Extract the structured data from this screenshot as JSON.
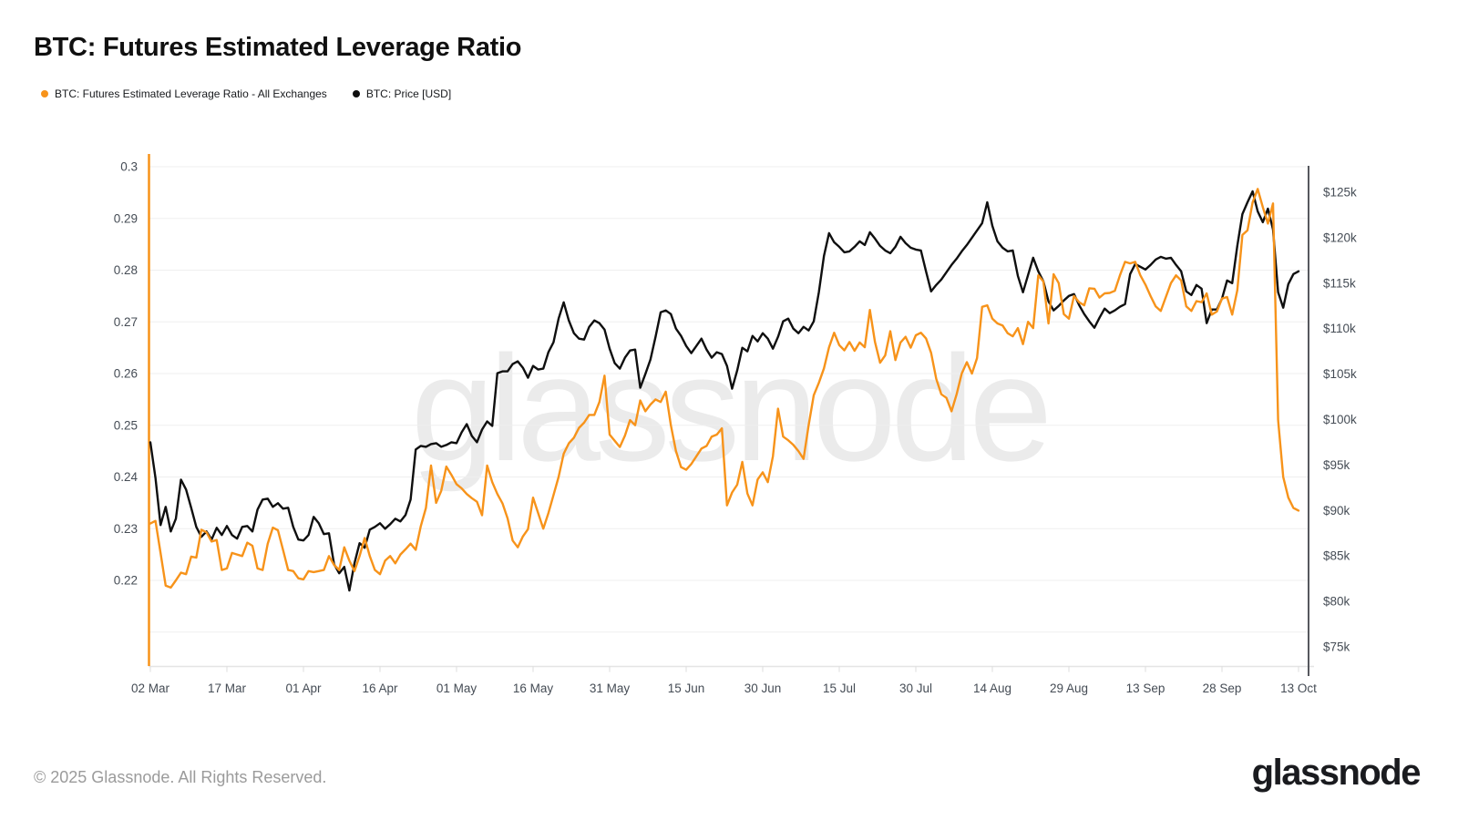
{
  "header": {
    "title": "BTC: Futures Estimated Leverage Ratio"
  },
  "watermark_text": "glassnode",
  "footer": {
    "copyright": "© 2025 Glassnode. All Rights Reserved.",
    "logo_text": "glassnode"
  },
  "chart_data": {
    "type": "line",
    "title": "BTC: Futures Estimated Leverage Ratio",
    "legend_position": "top-left",
    "x_axis": {
      "ticks": [
        "02 Mar",
        "17 Mar",
        "01 Apr",
        "16 Apr",
        "01 May",
        "16 May",
        "31 May",
        "15 Jun",
        "30 Jun",
        "15 Jul",
        "30 Jul",
        "14 Aug",
        "29 Aug",
        "13 Sep",
        "28 Sep",
        "13 Oct"
      ],
      "tick_interval_days": 15,
      "domain_days": [
        0,
        225
      ],
      "grid": false
    },
    "left_axis": {
      "ticks": [
        "0.3",
        "0.29",
        "0.28",
        "0.27",
        "0.26",
        "0.25",
        "0.24",
        "0.23",
        "0.22"
      ],
      "range": [
        0.21,
        0.3
      ],
      "gridlines": 10,
      "grid": true,
      "axis_line_color": "#F7931A"
    },
    "right_axis": {
      "ticks": [
        "$125k",
        "$120k",
        "$115k",
        "$110k",
        "$105k",
        "$100k",
        "$95k",
        "$90k",
        "$85k",
        "$80k",
        "$75k"
      ],
      "range_thousand_usd": [
        75,
        125
      ],
      "axis_line_color": "#56585e"
    },
    "series": [
      {
        "name": "BTC: Futures Estimated Leverage Ratio - All Exchanges",
        "color": "#F7931A",
        "axis": "left",
        "x_start_day": 0,
        "x_step_days": 1,
        "values": [
          0.231,
          0.2315,
          0.2253,
          0.219,
          0.2186,
          0.22,
          0.2215,
          0.2212,
          0.2246,
          0.2244,
          0.2298,
          0.2293,
          0.2275,
          0.2278,
          0.222,
          0.2223,
          0.2253,
          0.225,
          0.2247,
          0.2273,
          0.2267,
          0.2223,
          0.222,
          0.2271,
          0.2302,
          0.2297,
          0.2259,
          0.222,
          0.2218,
          0.2204,
          0.2202,
          0.2218,
          0.2216,
          0.2218,
          0.222,
          0.2247,
          0.223,
          0.222,
          0.2264,
          0.2238,
          0.2218,
          0.2247,
          0.2282,
          0.2247,
          0.222,
          0.2212,
          0.2238,
          0.2247,
          0.2233,
          0.225,
          0.226,
          0.2271,
          0.2259,
          0.2305,
          0.234,
          0.2422,
          0.235,
          0.2373,
          0.242,
          0.2404,
          0.2386,
          0.2378,
          0.2367,
          0.2359,
          0.2352,
          0.2326,
          0.2422,
          0.239,
          0.2367,
          0.2349,
          0.232,
          0.2277,
          0.2264,
          0.2285,
          0.2299,
          0.236,
          0.233,
          0.23,
          0.233,
          0.2365,
          0.24,
          0.2445,
          0.2465,
          0.2476,
          0.2495,
          0.2505,
          0.252,
          0.252,
          0.2545,
          0.2596,
          0.2482,
          0.247,
          0.2458,
          0.248,
          0.251,
          0.25,
          0.2548,
          0.2527,
          0.254,
          0.255,
          0.2545,
          0.2565,
          0.25,
          0.245,
          0.2419,
          0.2414,
          0.2425,
          0.244,
          0.2455,
          0.246,
          0.2478,
          0.2482,
          0.2494,
          0.2345,
          0.237,
          0.2385,
          0.2429,
          0.2368,
          0.2345,
          0.2395,
          0.2409,
          0.239,
          0.244,
          0.2532,
          0.2478,
          0.2471,
          0.2462,
          0.245,
          0.2435,
          0.25,
          0.2558,
          0.2582,
          0.261,
          0.2651,
          0.2679,
          0.2655,
          0.2645,
          0.2661,
          0.2644,
          0.266,
          0.2651,
          0.2723,
          0.2661,
          0.2621,
          0.2635,
          0.2682,
          0.2626,
          0.266,
          0.2671,
          0.265,
          0.2674,
          0.2679,
          0.2668,
          0.264,
          0.259,
          0.256,
          0.2553,
          0.2527,
          0.256,
          0.26,
          0.2622,
          0.26,
          0.263,
          0.2729,
          0.2732,
          0.2706,
          0.2697,
          0.2693,
          0.2678,
          0.2672,
          0.2688,
          0.2657,
          0.27,
          0.2688,
          0.279,
          0.2778,
          0.2697,
          0.2792,
          0.2775,
          0.2715,
          0.2706,
          0.275,
          0.2738,
          0.2732,
          0.2765,
          0.2764,
          0.2747,
          0.2755,
          0.2756,
          0.276,
          0.279,
          0.2816,
          0.2813,
          0.2816,
          0.279,
          0.2772,
          0.275,
          0.273,
          0.2721,
          0.2748,
          0.2775,
          0.279,
          0.278,
          0.273,
          0.2721,
          0.274,
          0.2738,
          0.2755,
          0.2714,
          0.272,
          0.2745,
          0.2748,
          0.2714,
          0.2761,
          0.2868,
          0.2877,
          0.2931,
          0.2957,
          0.2922,
          0.289,
          0.2929,
          0.251,
          0.24,
          0.236,
          0.234,
          0.2335
        ]
      },
      {
        "name": "BTC: Price [USD]",
        "color": "#0F0F0F",
        "axis": "right",
        "unit": "thousand USD",
        "x_start_day": 0,
        "x_step_days": 1,
        "values": [
          97.5,
          93.6,
          88.4,
          90.4,
          87.7,
          89.1,
          93.4,
          92.3,
          90.3,
          88.2,
          87.1,
          87.7,
          86.8,
          88.1,
          87.3,
          88.3,
          87.3,
          86.9,
          88.2,
          88.3,
          87.7,
          90.1,
          91.2,
          91.3,
          90.4,
          90.8,
          90.2,
          90.3,
          88.2,
          86.8,
          86.7,
          87.3,
          89.3,
          88.6,
          87.4,
          87.5,
          84.1,
          83.1,
          83.8,
          81.2,
          84.2,
          86.4,
          85.9,
          87.9,
          88.2,
          88.6,
          88.0,
          88.5,
          89.1,
          88.8,
          89.5,
          91.2,
          96.7,
          97.1,
          97.0,
          97.3,
          97.4,
          97.0,
          97.2,
          97.5,
          97.4,
          98.6,
          99.5,
          98.2,
          97.5,
          98.9,
          99.8,
          99.3,
          105.1,
          105.3,
          105.3,
          106.1,
          106.4,
          105.7,
          104.6,
          105.9,
          105.5,
          105.6,
          107.4,
          108.5,
          111.1,
          112.9,
          110.9,
          109.5,
          108.9,
          108.8,
          110.2,
          110.9,
          110.6,
          109.9,
          107.8,
          106.2,
          105.6,
          106.8,
          107.6,
          107.7,
          103.5,
          105.0,
          106.6,
          109.1,
          111.8,
          112.0,
          111.6,
          110.0,
          109.2,
          108.1,
          107.3,
          108.1,
          108.9,
          107.7,
          106.8,
          107.4,
          107.2,
          105.9,
          103.4,
          105.4,
          107.9,
          107.5,
          109.2,
          108.6,
          109.5,
          108.9,
          107.8,
          109.1,
          110.8,
          111.1,
          110.0,
          109.5,
          110.2,
          109.8,
          110.8,
          114.0,
          118.0,
          120.5,
          119.5,
          119.0,
          118.4,
          118.5,
          119.0,
          119.6,
          119.2,
          120.6,
          119.9,
          119.1,
          118.6,
          118.3,
          119.0,
          120.1,
          119.4,
          118.9,
          118.7,
          118.6,
          116.3,
          114.1,
          114.8,
          115.4,
          116.2,
          117.0,
          117.7,
          118.5,
          119.2,
          120.0,
          120.8,
          121.6,
          123.9,
          121.3,
          119.6,
          118.9,
          118.5,
          118.6,
          115.8,
          114.0,
          115.9,
          117.8,
          116.3,
          115.2,
          113.0,
          112.0,
          112.5,
          113.1,
          113.6,
          113.8,
          112.6,
          111.6,
          110.8,
          110.1,
          111.2,
          112.2,
          111.7,
          112.0,
          112.4,
          112.7,
          116.0,
          117.1,
          116.8,
          116.5,
          117.0,
          117.6,
          117.9,
          117.7,
          117.8,
          117.0,
          116.3,
          114.1,
          113.7,
          114.8,
          114.4,
          110.6,
          112.1,
          112.1,
          113.3,
          115.3,
          115.0,
          119.1,
          122.6,
          123.9,
          125.1,
          122.9,
          121.7,
          123.2,
          120.9,
          114.0,
          112.3,
          114.9,
          116.0,
          116.3
        ]
      }
    ]
  }
}
